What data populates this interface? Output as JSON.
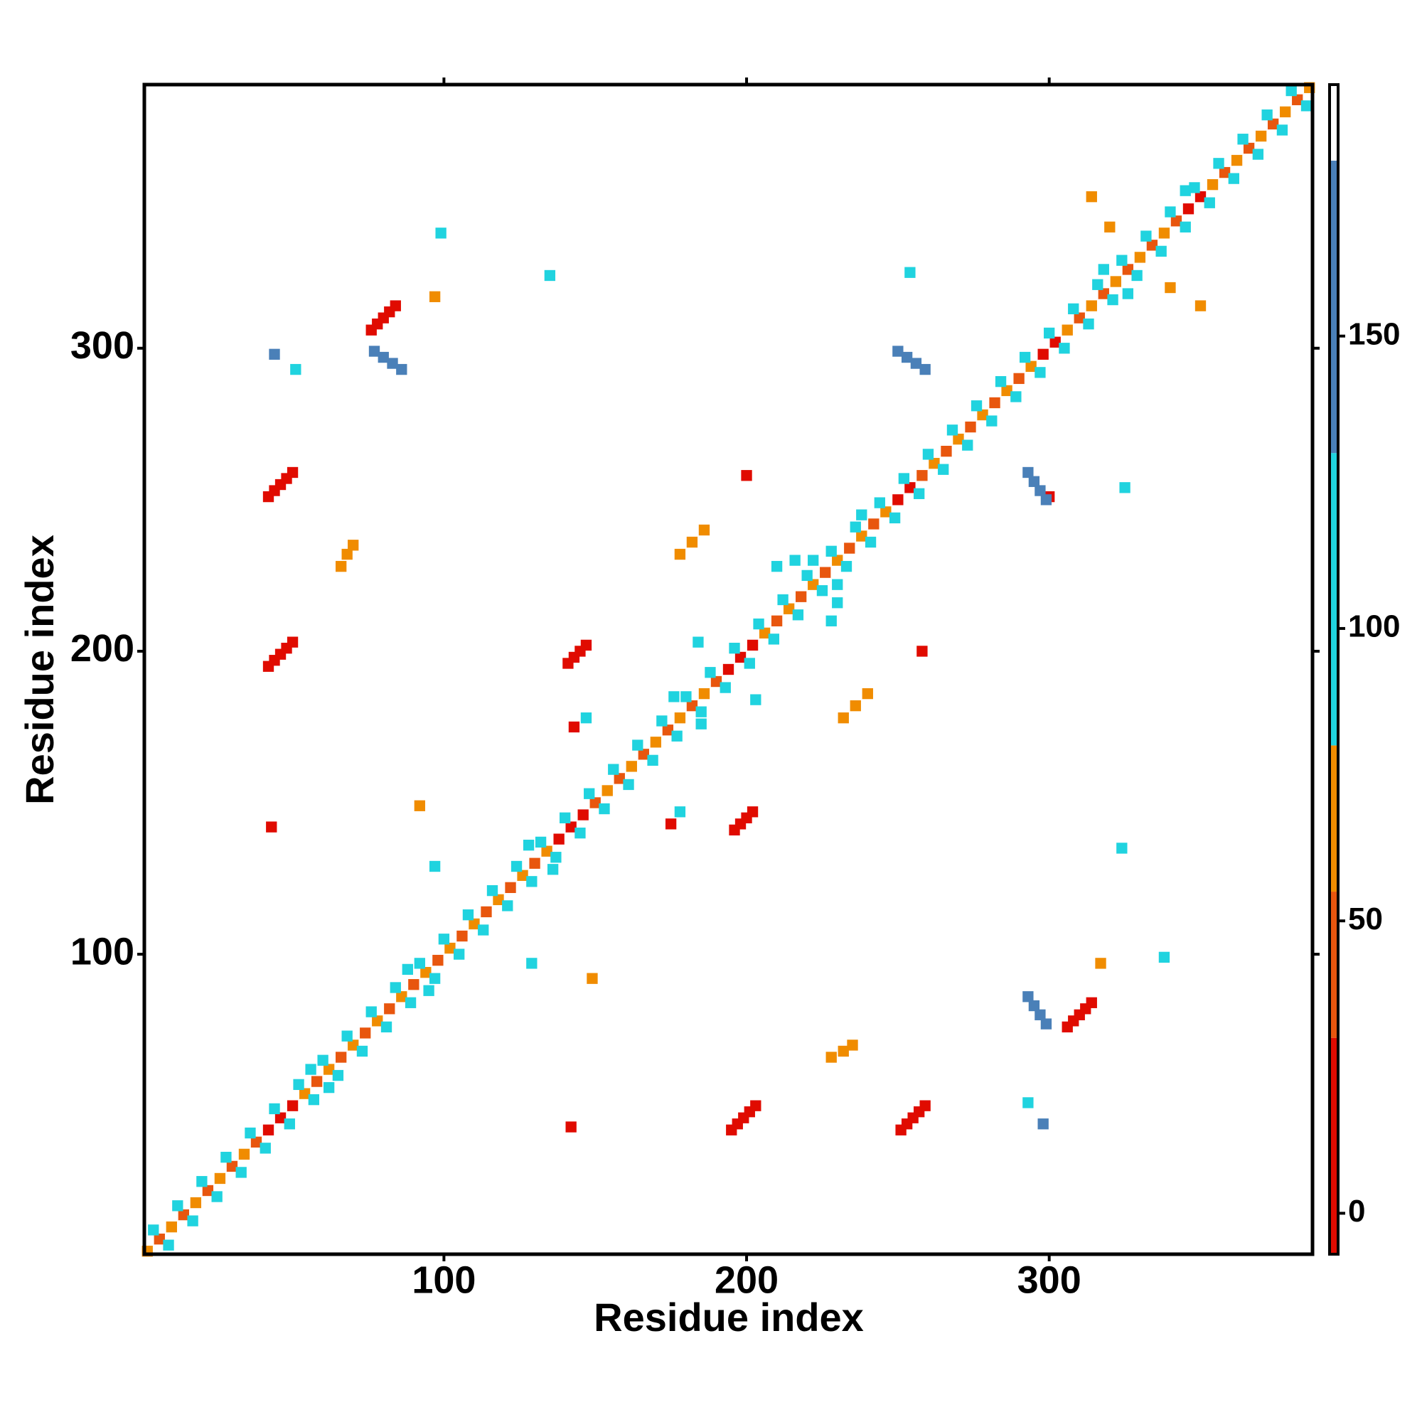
{
  "chart_data": {
    "type": "heatmap",
    "xlabel": "Residue index",
    "ylabel": "Residue index",
    "xlim": [
      1,
      387
    ],
    "ylim": [
      1,
      387
    ],
    "xticks": [
      100,
      200,
      300
    ],
    "yticks": [
      100,
      200,
      300
    ],
    "colorbar": {
      "lim": [
        -7,
        193
      ],
      "ticks": [
        0,
        50,
        100,
        150
      ],
      "bands": [
        {
          "from": -7,
          "to": 30,
          "color": "#e00b00"
        },
        {
          "from": 30,
          "to": 55,
          "color": "#e8560e"
        },
        {
          "from": 55,
          "to": 80,
          "color": "#f08c00"
        },
        {
          "from": 80,
          "to": 130,
          "color": "#20d3df"
        },
        {
          "from": 130,
          "to": 180,
          "color": "#4a80b8"
        },
        {
          "from": 180,
          "to": 193,
          "color": "#ffffff"
        }
      ]
    },
    "cells": [
      {
        "x": [
          2,
          6,
          10,
          14,
          18,
          22,
          26,
          30,
          34,
          38,
          42,
          46,
          50,
          54,
          58,
          62,
          66,
          70,
          74,
          78,
          82,
          86,
          90,
          94,
          98,
          102,
          106,
          110,
          114,
          118,
          122,
          126,
          130,
          134,
          138,
          142,
          146,
          150,
          154,
          158,
          162,
          166,
          170,
          174,
          178,
          182,
          186,
          190,
          194,
          198,
          202,
          206,
          210,
          214,
          218,
          222,
          226,
          230,
          234,
          238,
          242,
          246,
          250,
          254,
          258,
          262,
          266,
          270,
          274,
          278,
          282,
          286,
          290,
          294,
          298,
          302,
          306,
          310,
          314,
          318,
          322,
          326,
          330,
          334,
          338,
          342,
          346,
          350,
          354,
          358,
          362,
          366,
          370,
          374,
          378,
          382,
          386
        ],
        "y": [
          2,
          6,
          10,
          14,
          18,
          22,
          26,
          30,
          34,
          38,
          42,
          46,
          50,
          54,
          58,
          62,
          66,
          70,
          74,
          78,
          82,
          86,
          90,
          94,
          98,
          102,
          106,
          110,
          114,
          118,
          122,
          126,
          130,
          134,
          138,
          142,
          146,
          150,
          154,
          158,
          162,
          166,
          170,
          174,
          178,
          182,
          186,
          190,
          194,
          198,
          202,
          206,
          210,
          214,
          218,
          222,
          226,
          230,
          234,
          238,
          242,
          246,
          250,
          254,
          258,
          262,
          266,
          270,
          274,
          278,
          282,
          286,
          290,
          294,
          298,
          302,
          306,
          310,
          314,
          318,
          322,
          326,
          330,
          334,
          338,
          342,
          346,
          350,
          354,
          358,
          362,
          366,
          370,
          374,
          378,
          382,
          386
        ],
        "values": [
          60,
          45,
          60,
          45,
          60,
          45,
          60,
          45,
          60,
          45,
          5,
          5,
          5,
          60,
          45,
          60,
          45,
          60,
          45,
          60,
          45,
          60,
          45,
          60,
          45,
          60,
          45,
          60,
          45,
          60,
          45,
          60,
          45,
          60,
          5,
          5,
          5,
          45,
          60,
          45,
          60,
          45,
          60,
          45,
          60,
          45,
          60,
          45,
          5,
          5,
          5,
          60,
          45,
          60,
          45,
          60,
          45,
          60,
          45,
          60,
          45,
          60,
          5,
          5,
          45,
          60,
          45,
          60,
          45,
          60,
          45,
          60,
          45,
          60,
          5,
          5,
          60,
          45,
          60,
          45,
          60,
          45,
          60,
          45,
          60,
          45,
          5,
          5,
          60,
          45,
          60,
          45,
          60,
          45,
          60,
          45,
          60
        ]
      },
      {
        "x": [
          4,
          12,
          20,
          28,
          36,
          44,
          52,
          60,
          68,
          76,
          84,
          92,
          100,
          108,
          116,
          124,
          132,
          140,
          148,
          156,
          164,
          172,
          180,
          188,
          196,
          204,
          212,
          220,
          228,
          236,
          244,
          252,
          260,
          268,
          276,
          284,
          292,
          300,
          308,
          316,
          324,
          332,
          340,
          348,
          356,
          364,
          372,
          380
        ],
        "y": [
          9,
          17,
          25,
          33,
          41,
          49,
          57,
          65,
          73,
          81,
          89,
          97,
          105,
          113,
          121,
          129,
          137,
          145,
          153,
          161,
          169,
          177,
          185,
          193,
          201,
          209,
          217,
          225,
          233,
          241,
          249,
          257,
          265,
          273,
          281,
          289,
          297,
          305,
          313,
          321,
          329,
          337,
          345,
          353,
          361,
          369,
          377,
          385
        ],
        "values": [
          100,
          100,
          100,
          100,
          100,
          100,
          100,
          100,
          100,
          100,
          100,
          100,
          100,
          100,
          100,
          100,
          100,
          100,
          100,
          100,
          100,
          100,
          100,
          100,
          100,
          100,
          100,
          100,
          100,
          100,
          100,
          100,
          100,
          100,
          100,
          100,
          100,
          100,
          100,
          100,
          100,
          100,
          100,
          100,
          100,
          100,
          100,
          100
        ]
      },
      {
        "x": [
          9,
          17,
          25,
          33,
          41,
          49,
          57,
          65,
          73,
          81,
          89,
          97,
          105,
          113,
          121,
          129,
          137,
          145,
          153,
          161,
          169,
          177,
          185,
          193,
          201,
          209,
          217,
          225,
          233,
          241,
          249,
          257,
          265,
          273,
          281,
          289,
          297,
          305,
          313,
          321,
          329,
          337,
          345,
          353,
          361,
          369,
          377,
          385
        ],
        "y": [
          4,
          12,
          20,
          28,
          36,
          44,
          52,
          60,
          68,
          76,
          84,
          92,
          100,
          108,
          116,
          124,
          132,
          140,
          148,
          156,
          164,
          172,
          180,
          188,
          196,
          204,
          212,
          220,
          228,
          236,
          244,
          252,
          260,
          268,
          276,
          284,
          292,
          300,
          308,
          316,
          324,
          332,
          340,
          348,
          356,
          364,
          372,
          380
        ],
        "values": [
          100,
          100,
          100,
          100,
          100,
          100,
          100,
          100,
          100,
          100,
          100,
          100,
          100,
          100,
          100,
          100,
          100,
          100,
          100,
          100,
          100,
          100,
          100,
          100,
          100,
          100,
          100,
          100,
          100,
          100,
          100,
          100,
          100,
          100,
          100,
          100,
          100,
          100,
          100,
          100,
          100,
          100,
          100,
          100,
          100,
          100,
          100,
          100
        ]
      },
      {
        "x": [
          56,
          62,
          88,
          95,
          128,
          136,
          176,
          185,
          222,
          230,
          238,
          318,
          326,
          345
        ],
        "y": [
          62,
          56,
          95,
          88,
          136,
          128,
          185,
          176,
          230,
          222,
          245,
          326,
          318,
          352
        ],
        "values": [
          100,
          100,
          100,
          100,
          100,
          100,
          100,
          100,
          100,
          100,
          100,
          100,
          100,
          100
        ]
      },
      {
        "x": [
          42,
          44,
          46,
          48,
          50,
          251,
          253,
          255,
          257,
          259,
          42,
          44,
          46,
          48,
          50,
          195,
          197,
          199,
          201,
          203,
          76,
          78,
          80,
          82,
          84,
          306,
          308,
          310,
          312,
          314,
          141,
          143,
          145,
          147,
          196,
          198,
          200,
          202,
          43,
          142,
          143,
          175,
          300,
          200,
          258
        ],
        "y": [
          251,
          253,
          255,
          257,
          259,
          42,
          44,
          46,
          48,
          50,
          195,
          197,
          199,
          201,
          203,
          42,
          44,
          46,
          48,
          50,
          306,
          308,
          310,
          312,
          314,
          76,
          78,
          80,
          82,
          84,
          196,
          198,
          200,
          202,
          141,
          143,
          145,
          147,
          142,
          43,
          175,
          143,
          251,
          258,
          200
        ],
        "values": [
          5,
          5,
          5,
          5,
          5,
          5,
          5,
          5,
          5,
          5,
          5,
          5,
          5,
          5,
          5,
          5,
          5,
          5,
          5,
          5,
          5,
          5,
          5,
          5,
          5,
          5,
          5,
          5,
          5,
          5,
          5,
          5,
          5,
          5,
          5,
          5,
          5,
          5,
          5,
          5,
          5,
          5,
          5,
          5,
          5
        ]
      },
      {
        "x": [
          77,
          80,
          83,
          86,
          299,
          297,
          295,
          293,
          250,
          253,
          256,
          259,
          293,
          295,
          297,
          299,
          44,
          298
        ],
        "y": [
          299,
          297,
          295,
          293,
          77,
          80,
          83,
          86,
          299,
          297,
          295,
          293,
          259,
          256,
          253,
          250,
          298,
          44
        ],
        "values": [
          150,
          150,
          150,
          150,
          150,
          150,
          150,
          150,
          150,
          150,
          150,
          150,
          150,
          150,
          150,
          150,
          150,
          150
        ]
      },
      {
        "x": [
          66,
          68,
          70,
          228,
          232,
          235,
          178,
          182,
          186,
          232,
          236,
          240,
          314,
          320,
          340,
          350,
          149,
          92,
          317,
          97
        ],
        "y": [
          228,
          232,
          235,
          66,
          68,
          70,
          232,
          236,
          240,
          178,
          182,
          186,
          350,
          340,
          320,
          314,
          92,
          149,
          97,
          317
        ],
        "values": [
          60,
          60,
          60,
          60,
          60,
          60,
          60,
          60,
          60,
          60,
          60,
          60,
          60,
          60,
          60,
          60,
          60,
          60,
          60,
          60
        ]
      },
      {
        "x": [
          99,
          338,
          51,
          293,
          129,
          97,
          184,
          203,
          147,
          178,
          254,
          325,
          324,
          135,
          210,
          228,
          216,
          230
        ],
        "y": [
          338,
          99,
          293,
          51,
          97,
          129,
          203,
          184,
          178,
          147,
          325,
          254,
          135,
          324,
          228,
          210,
          230,
          216
        ],
        "values": [
          100,
          100,
          100,
          100,
          100,
          100,
          100,
          100,
          100,
          100,
          100,
          100,
          100,
          100,
          100,
          100,
          100,
          100
        ]
      }
    ]
  }
}
